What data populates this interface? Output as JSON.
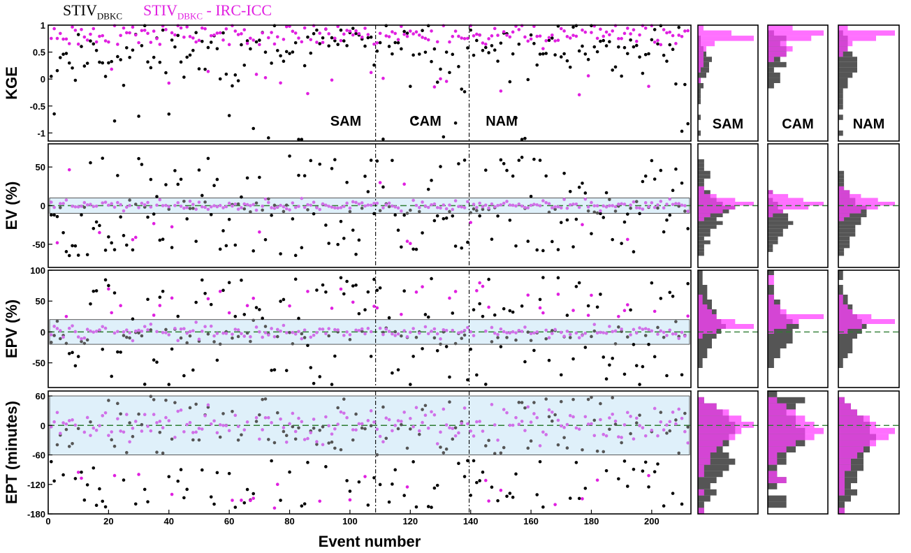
{
  "legend": {
    "black_label_main": "STIV",
    "black_label_sub": "DBKC",
    "magenta_label_main": "STIV",
    "magenta_label_sub": "DBKC",
    "magenta_label_suffix": " - IRC-ICC",
    "black_color": "#000000",
    "magenta_color": "#e020e0"
  },
  "chart_data": {
    "type": "scatter",
    "xlabel": "Event number",
    "x_ticks": [
      0,
      20,
      40,
      60,
      80,
      100,
      120,
      140,
      160,
      180,
      200
    ],
    "x_range": [
      0,
      213
    ],
    "region_boundaries": [
      108.5,
      139.5
    ],
    "regions": [
      "SAM",
      "CAM",
      "NAM"
    ],
    "colors": {
      "black": "#000000",
      "magenta": "#e020e0",
      "band": "#dff0fa",
      "zero_line": "#2e7d32",
      "hist_gray": "#555555",
      "hist_magenta": "#ff40ff"
    },
    "panels": [
      {
        "id": "kge",
        "ylabel": "KGE",
        "ylim": [
          -1.15,
          1
        ],
        "yticks": [
          1,
          0.5,
          0,
          -0.5,
          -1
        ],
        "ytick_labels": [
          "1",
          "0.5",
          "0",
          "-0.5",
          "-1"
        ],
        "band": null,
        "zero_line": false,
        "show_region_labels": true,
        "black": {
          "seed": 11,
          "mode": "kge_black"
        },
        "magenta": {
          "seed": 23,
          "mode": "kge_mag"
        },
        "hist_bins": [
          -1.1,
          1.0,
          22
        ],
        "hist": {
          "SAM": {
            "gray": [
              0,
              1,
              0,
              0,
              1,
              0,
              0,
              1,
              1,
              1,
              2,
              1,
              3,
              4,
              4,
              5,
              3,
              2,
              1,
              1,
              0,
              0
            ],
            "mag": [
              0,
              0,
              0,
              0,
              0,
              0,
              0,
              0,
              0,
              0,
              0,
              1,
              0,
              1,
              2,
              2,
              2,
              3,
              6,
              20,
              12,
              2
            ]
          },
          "CAM": {
            "gray": [
              0,
              0,
              0,
              0,
              0,
              0,
              0,
              0,
              0,
              0,
              1,
              2,
              2,
              1,
              3,
              2,
              3,
              3,
              2,
              3,
              1,
              0
            ],
            "mag": [
              0,
              0,
              0,
              0,
              0,
              0,
              0,
              0,
              0,
              0,
              0,
              0,
              0,
              0,
              0,
              1,
              3,
              4,
              3,
              7,
              9,
              4
            ]
          },
          "NAM": {
            "gray": [
              0,
              1,
              0,
              0,
              1,
              0,
              1,
              1,
              1,
              1,
              2,
              2,
              3,
              4,
              4,
              4,
              3,
              2,
              2,
              2,
              1,
              0
            ],
            "mag": [
              0,
              0,
              0,
              0,
              0,
              0,
              0,
              0,
              0,
              0,
              0,
              0,
              0,
              0,
              0,
              0,
              1,
              2,
              3,
              8,
              12,
              2
            ]
          }
        }
      },
      {
        "id": "ev",
        "ylabel": "EV (%)",
        "ylim": [
          -80,
          80
        ],
        "yticks": [
          50,
          0,
          -50
        ],
        "ytick_labels": [
          "50",
          "0",
          "-50"
        ],
        "band": [
          -10,
          10
        ],
        "zero_line": true,
        "show_region_labels": false,
        "black": {
          "seed": 37,
          "mode": "ev_black"
        },
        "magenta": {
          "seed": 41,
          "mode": "ev_mag"
        },
        "hist_bins": [
          -80,
          80,
          32
        ],
        "hist": {
          "SAM": {
            "gray": [
              0,
              0,
              0,
              1,
              1,
              1,
              2,
              1,
              2,
              2,
              3,
              4,
              3,
              4,
              5,
              6,
              4,
              3,
              2,
              2,
              1,
              1,
              1,
              2,
              2,
              1,
              1,
              1,
              0,
              0,
              0,
              0
            ],
            "mag": [
              0,
              0,
              0,
              0,
              0,
              0,
              0,
              0,
              0,
              0,
              0,
              0,
              1,
              2,
              4,
              6,
              9,
              6,
              3,
              1,
              1,
              0,
              0,
              0,
              0,
              0,
              0,
              0,
              0,
              0,
              0,
              0
            ]
          },
          "CAM": {
            "gray": [
              0,
              0,
              0,
              0,
              1,
              1,
              2,
              2,
              3,
              3,
              4,
              5,
              4,
              4,
              3,
              2,
              2,
              1,
              0,
              1,
              0,
              0,
              0,
              0,
              0,
              0,
              0,
              0,
              0,
              0,
              0,
              0
            ],
            "mag": [
              0,
              0,
              0,
              0,
              0,
              0,
              0,
              0,
              0,
              0,
              0,
              0,
              0,
              1,
              3,
              8,
              11,
              7,
              4,
              1,
              0,
              0,
              0,
              0,
              0,
              0,
              0,
              0,
              0,
              0,
              0,
              0
            ]
          },
          "NAM": {
            "gray": [
              0,
              0,
              0,
              1,
              1,
              2,
              2,
              2,
              3,
              3,
              3,
              4,
              4,
              5,
              5,
              5,
              3,
              3,
              2,
              2,
              1,
              1,
              1,
              1,
              1,
              0,
              0,
              0,
              0,
              0,
              0,
              0
            ],
            "mag": [
              0,
              0,
              0,
              0,
              0,
              0,
              0,
              0,
              0,
              0,
              0,
              0,
              1,
              2,
              4,
              7,
              10,
              7,
              4,
              2,
              1,
              0,
              0,
              0,
              0,
              0,
              0,
              0,
              0,
              0,
              0,
              0
            ]
          }
        }
      },
      {
        "id": "epv",
        "ylabel": "EPV (%)",
        "ylim": [
          -90,
          100
        ],
        "yticks": [
          100,
          50,
          0,
          -50
        ],
        "ytick_labels": [
          "100",
          "50",
          "0",
          "-50"
        ],
        "band": [
          -20,
          20
        ],
        "zero_line": true,
        "show_region_labels": false,
        "black": {
          "seed": 53,
          "mode": "epv_black"
        },
        "magenta": {
          "seed": 59,
          "mode": "epv_mag"
        },
        "hist_bins": [
          -90,
          100,
          24
        ],
        "hist": {
          "SAM": {
            "gray": [
              0,
              0,
              0,
              0,
              1,
              1,
              2,
              2,
              3,
              3,
              4,
              5,
              6,
              5,
              4,
              4,
              3,
              3,
              2,
              2,
              2,
              1,
              1,
              1
            ],
            "mag": [
              0,
              0,
              0,
              0,
              0,
              0,
              0,
              0,
              0,
              0,
              1,
              4,
              12,
              8,
              4,
              3,
              2,
              1,
              1,
              0,
              0,
              0,
              0,
              0
            ]
          },
          "CAM": {
            "gray": [
              0,
              0,
              0,
              0,
              1,
              1,
              2,
              2,
              3,
              4,
              4,
              4,
              5,
              4,
              3,
              2,
              2,
              2,
              1,
              1,
              1,
              0,
              0,
              1
            ],
            "mag": [
              0,
              0,
              0,
              0,
              0,
              0,
              0,
              0,
              0,
              0,
              0,
              1,
              3,
              5,
              9,
              3,
              2,
              1,
              1,
              0,
              0,
              1,
              1,
              0
            ]
          },
          "NAM": {
            "gray": [
              0,
              0,
              0,
              0,
              1,
              1,
              2,
              3,
              3,
              3,
              4,
              5,
              6,
              5,
              4,
              3,
              3,
              2,
              2,
              1,
              1,
              0,
              1,
              1
            ],
            "mag": [
              0,
              0,
              0,
              0,
              0,
              0,
              0,
              0,
              0,
              0,
              0,
              2,
              5,
              12,
              7,
              3,
              2,
              1,
              1,
              0,
              0,
              0,
              0,
              0
            ]
          }
        }
      },
      {
        "id": "ept",
        "ylabel": "EPT (minutes)",
        "ylim": [
          -180,
          70
        ],
        "yticks": [
          60,
          0,
          -60,
          -120,
          -180
        ],
        "ytick_labels": [
          "60",
          "0",
          "-60",
          "-120",
          "-180"
        ],
        "band": [
          -60,
          60
        ],
        "zero_line": true,
        "show_region_labels": false,
        "black": {
          "seed": 67,
          "mode": "ept_black"
        },
        "magenta": {
          "seed": 71,
          "mode": "ept_mag"
        },
        "hist_bins": [
          -180,
          70,
          20
        ],
        "hist": {
          "SAM": {
            "gray": [
              1,
              1,
              2,
              3,
              2,
              3,
              4,
              5,
              6,
              5,
              4,
              5,
              5,
              6,
              6,
              5,
              4,
              3,
              1,
              0
            ],
            "mag": [
              1,
              0,
              0,
              1,
              0,
              0,
              1,
              1,
              2,
              2,
              3,
              4,
              6,
              7,
              9,
              7,
              5,
              3,
              1,
              0
            ]
          },
          "CAM": {
            "gray": [
              0,
              2,
              2,
              0,
              1,
              2,
              1,
              1,
              2,
              2,
              3,
              4,
              4,
              4,
              3,
              3,
              2,
              3,
              4,
              1
            ],
            "mag": [
              0,
              0,
              0,
              0,
              0,
              2,
              1,
              0,
              1,
              1,
              2,
              3,
              5,
              6,
              5,
              4,
              3,
              2,
              1,
              0
            ]
          },
          "NAM": {
            "gray": [
              1,
              1,
              2,
              3,
              2,
              3,
              3,
              4,
              4,
              4,
              5,
              5,
              6,
              5,
              5,
              4,
              3,
              2,
              1,
              0
            ],
            "mag": [
              1,
              0,
              0,
              1,
              1,
              1,
              1,
              2,
              2,
              3,
              4,
              6,
              8,
              9,
              6,
              5,
              3,
              2,
              1,
              0
            ]
          }
        }
      }
    ]
  }
}
